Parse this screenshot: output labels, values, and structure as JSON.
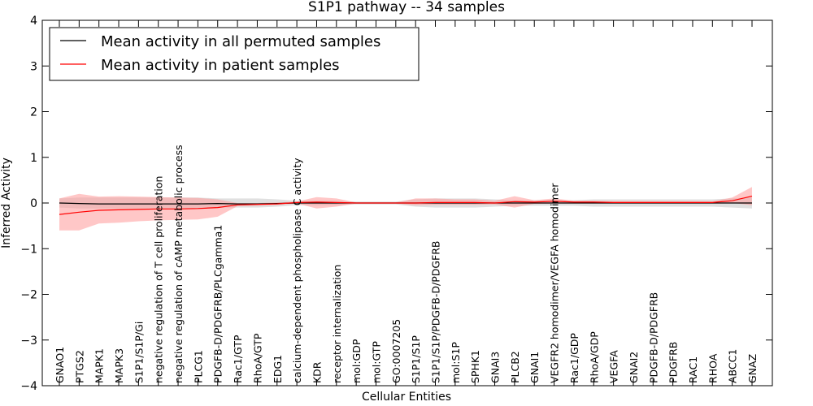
{
  "chart_data": {
    "type": "line",
    "title": "S1P1 pathway -- 34 samples",
    "xlabel": "Cellular Entities",
    "ylabel": "Inferred Activity",
    "ylim": [
      -4,
      4
    ],
    "yticks": [
      -4,
      -3,
      -2,
      -1,
      0,
      1,
      2,
      3,
      4
    ],
    "ytick_labels": [
      "−4",
      "−3",
      "−2",
      "−1",
      "0",
      "1",
      "2",
      "3",
      "4"
    ],
    "legend_position": "top-left",
    "categories": [
      "GNAO1",
      "PTGS2",
      "MAPK1",
      "MAPK3",
      "S1P1/S1P/Gi",
      "negative regulation of T cell proliferation",
      "negative regulation of cAMP metabolic process",
      "PLCG1",
      "PDGFB-D/PDGFRB/PLCgamma1",
      "Rac1/GTP",
      "RhoA/GTP",
      "EDG1",
      "calcium-dependent phospholipase C activity",
      "KDR",
      "receptor internalization",
      "mol:GDP",
      "mol:GTP",
      "GO:0007205",
      "S1P1/S1P",
      "S1P1/S1P/PDGFB-D/PDGFRB",
      "mol:S1P",
      "SPHK1",
      "GNAI3",
      "PLCB2",
      "GNAI1",
      "VEGFR2 homodimer/VEGFA homodimer",
      "Rac1/GDP",
      "RhoA/GDP",
      "VEGFA",
      "GNAI2",
      "PDGFB-D/PDGFRB",
      "PDGFRB",
      "RAC1",
      "RHOA",
      "ABCC1",
      "GNAZ"
    ],
    "series": [
      {
        "name": "Mean activity in all permuted samples",
        "color": "#000000",
        "values": [
          0.0,
          -0.01,
          -0.02,
          -0.02,
          -0.02,
          -0.02,
          -0.02,
          -0.02,
          -0.01,
          -0.02,
          -0.02,
          -0.01,
          0.0,
          0.0,
          0.0,
          0.0,
          0.0,
          0.0,
          0.0,
          0.0,
          0.0,
          0.0,
          0.0,
          0.0,
          0.0,
          0.0,
          0.0,
          0.0,
          0.0,
          0.0,
          0.0,
          0.0,
          0.0,
          0.0,
          0.0,
          0.0
        ],
        "band_lower": [
          -0.1,
          -0.12,
          -0.12,
          -0.12,
          -0.12,
          -0.12,
          -0.12,
          -0.12,
          -0.1,
          -0.1,
          -0.1,
          -0.08,
          -0.05,
          -0.05,
          -0.05,
          -0.03,
          -0.03,
          -0.03,
          -0.08,
          -0.1,
          -0.1,
          -0.1,
          -0.08,
          -0.06,
          -0.06,
          -0.06,
          -0.06,
          -0.08,
          -0.08,
          -0.08,
          -0.08,
          -0.08,
          -0.08,
          -0.08,
          -0.1,
          -0.12
        ],
        "band_upper": [
          0.1,
          0.12,
          0.12,
          0.12,
          0.12,
          0.12,
          0.12,
          0.12,
          0.1,
          0.1,
          0.1,
          0.08,
          0.05,
          0.05,
          0.05,
          0.03,
          0.03,
          0.03,
          0.08,
          0.1,
          0.1,
          0.1,
          0.08,
          0.06,
          0.06,
          0.06,
          0.06,
          0.08,
          0.08,
          0.08,
          0.08,
          0.08,
          0.08,
          0.08,
          0.1,
          0.12
        ],
        "band_color": "#cccccc"
      },
      {
        "name": "Mean activity in patient samples",
        "color": "#ff0000",
        "values": [
          -0.25,
          -0.2,
          -0.16,
          -0.15,
          -0.14,
          -0.13,
          -0.13,
          -0.12,
          -0.1,
          -0.04,
          -0.03,
          -0.02,
          0.01,
          0.02,
          0.01,
          0.0,
          0.0,
          0.0,
          0.0,
          0.01,
          0.01,
          0.01,
          0.0,
          0.03,
          0.02,
          0.04,
          0.02,
          0.02,
          0.01,
          0.01,
          0.01,
          0.01,
          0.01,
          0.01,
          0.05,
          0.15
        ],
        "band_lower": [
          -0.6,
          -0.6,
          -0.45,
          -0.43,
          -0.4,
          -0.38,
          -0.37,
          -0.36,
          -0.3,
          -0.07,
          -0.06,
          -0.04,
          -0.01,
          -0.12,
          -0.08,
          -0.01,
          -0.01,
          -0.01,
          -0.05,
          -0.04,
          -0.04,
          -0.04,
          -0.03,
          -0.1,
          -0.02,
          -0.01,
          -0.01,
          -0.01,
          -0.01,
          -0.01,
          -0.01,
          -0.01,
          -0.01,
          -0.01,
          0.0,
          -0.05
        ],
        "band_upper": [
          0.1,
          0.2,
          0.14,
          0.15,
          0.14,
          0.13,
          0.12,
          0.11,
          0.08,
          0.0,
          0.0,
          0.01,
          0.03,
          0.13,
          0.1,
          0.01,
          0.01,
          0.01,
          0.1,
          0.1,
          0.08,
          0.08,
          0.05,
          0.15,
          0.06,
          0.1,
          0.05,
          0.05,
          0.04,
          0.04,
          0.04,
          0.04,
          0.04,
          0.04,
          0.12,
          0.35
        ],
        "band_color": "#ff9999"
      }
    ]
  }
}
